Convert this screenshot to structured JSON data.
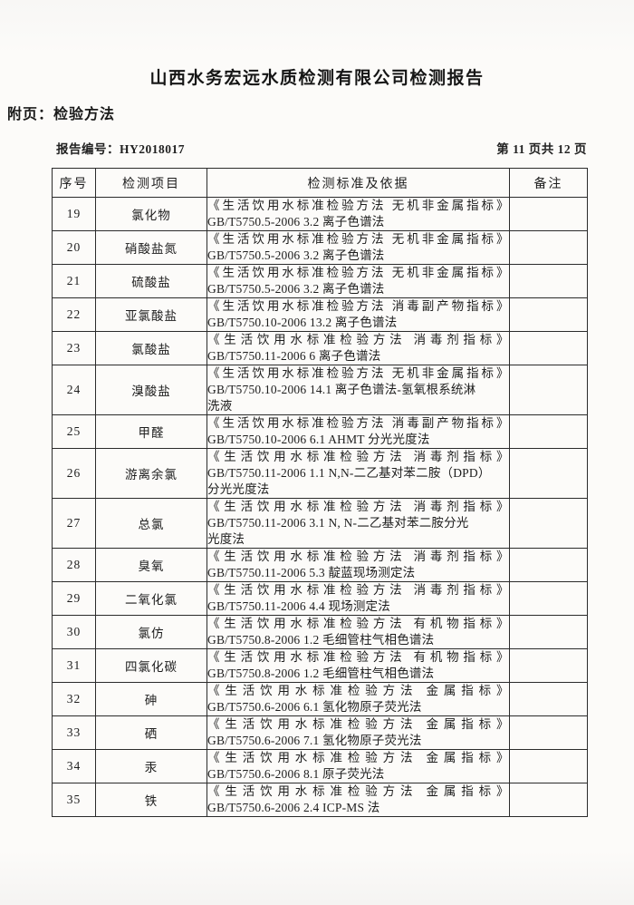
{
  "header": {
    "title": "山西水务宏远水质检测有限公司检测报告",
    "appendix": "附页：检验方法",
    "report_no_label": "报告编号：",
    "report_no": "HY2018017",
    "page_info": "第 11 页共 12 页"
  },
  "table": {
    "columns": [
      "序号",
      "检测项目",
      "检测标准及依据",
      "备注"
    ],
    "rows": [
      {
        "no": "19",
        "item": "氯化物",
        "lines": [
          "《生活饮用水标准检验方法 无机非金属指标》",
          "GB/T5750.5-2006  3.2 离子色谱法"
        ],
        "remark": ""
      },
      {
        "no": "20",
        "item": "硝酸盐氮",
        "lines": [
          "《生活饮用水标准检验方法 无机非金属指标》",
          "GB/T5750.5-2006  3.2 离子色谱法"
        ],
        "remark": ""
      },
      {
        "no": "21",
        "item": "硫酸盐",
        "lines": [
          "《生活饮用水标准检验方法 无机非金属指标》",
          "GB/T5750.5-2006  3.2 离子色谱法"
        ],
        "remark": ""
      },
      {
        "no": "22",
        "item": "亚氯酸盐",
        "lines": [
          "《生活饮用水标准检验方法 消毒副产物指标》",
          "GB/T5750.10-2006 13.2 离子色谱法"
        ],
        "remark": ""
      },
      {
        "no": "23",
        "item": "氯酸盐",
        "lines": [
          "《生活饮用水标准检验方法 消毒剂指标》",
          "GB/T5750.11-2006 6 离子色谱法"
        ],
        "remark": ""
      },
      {
        "no": "24",
        "item": "溴酸盐",
        "lines": [
          "《生活饮用水标准检验方法 无机非金属指标》",
          "GB/T5750.10-2006 14.1 离子色谱法-氢氧根系统淋",
          "洗液"
        ],
        "remark": ""
      },
      {
        "no": "25",
        "item": "甲醛",
        "lines": [
          "《生活饮用水标准检验方法 消毒副产物指标》",
          "GB/T5750.10-2006 6.1 AHMT 分光光度法"
        ],
        "remark": ""
      },
      {
        "no": "26",
        "item": "游离余氯",
        "lines": [
          "《生活饮用水标准检验方法 消毒剂指标》",
          "GB/T5750.11-2006 1.1 N,N-二乙基对苯二胺（DPD）",
          "分光光度法"
        ],
        "remark": ""
      },
      {
        "no": "27",
        "item": "总氯",
        "lines": [
          "《生活饮用水标准检验方法 消毒剂指标》",
          "GB/T5750.11-2006 3.1 N, N-二乙基对苯二胺分光",
          "光度法"
        ],
        "remark": ""
      },
      {
        "no": "28",
        "item": "臭氧",
        "lines": [
          "《生活饮用水标准检验方法 消毒剂指标》",
          "GB/T5750.11-2006 5.3 靛蓝现场测定法"
        ],
        "remark": ""
      },
      {
        "no": "29",
        "item": "二氧化氯",
        "lines": [
          "《生活饮用水标准检验方法 消毒剂指标》",
          "GB/T5750.11-2006 4.4 现场测定法"
        ],
        "remark": ""
      },
      {
        "no": "30",
        "item": "氯仿",
        "lines": [
          "《生活饮用水标准检验方法 有机物指标》",
          "GB/T5750.8-2006  1.2 毛细管柱气相色谱法"
        ],
        "remark": ""
      },
      {
        "no": "31",
        "item": "四氯化碳",
        "lines": [
          "《生活饮用水标准检验方法 有机物指标》",
          "GB/T5750.8-2006  1.2 毛细管柱气相色谱法"
        ],
        "remark": ""
      },
      {
        "no": "32",
        "item": "砷",
        "lines": [
          "《生活饮用水标准检验方法 金属指标》",
          "GB/T5750.6-2006  6.1 氢化物原子荧光法"
        ],
        "remark": ""
      },
      {
        "no": "33",
        "item": "硒",
        "lines": [
          "《生活饮用水标准检验方法 金属指标》",
          "GB/T5750.6-2006  7.1 氢化物原子荧光法"
        ],
        "remark": ""
      },
      {
        "no": "34",
        "item": "汞",
        "lines": [
          "《生活饮用水标准检验方法 金属指标》",
          "GB/T5750.6-2006  8.1 原子荧光法"
        ],
        "remark": ""
      },
      {
        "no": "35",
        "item": "铁",
        "lines": [
          "《生活饮用水标准检验方法 金属指标》",
          "GB/T5750.6-2006  2.4 ICP-MS 法"
        ],
        "remark": ""
      }
    ]
  }
}
